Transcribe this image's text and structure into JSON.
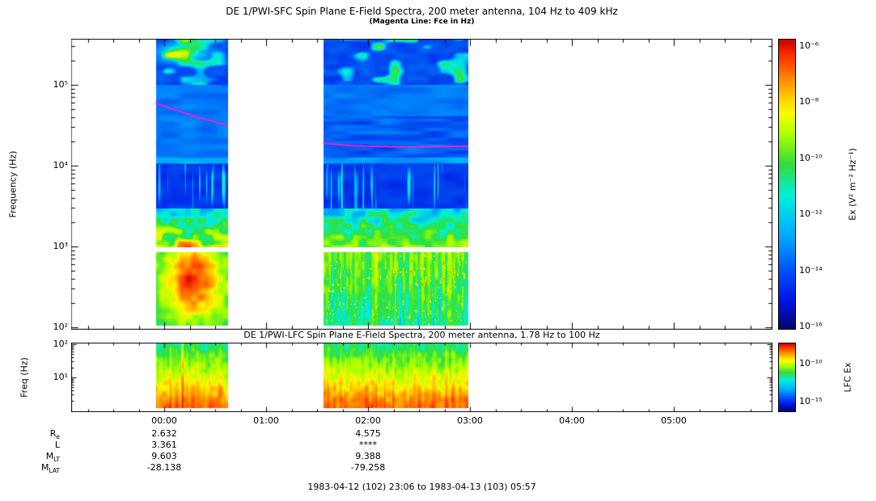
{
  "sfc": {
    "title": "DE 1/PWI-SFC  Spin Plane E-Field Spectra, 200 meter antenna, 104 Hz to 409 kHz",
    "subtitle": "(Magenta Line: Fce in Hz)",
    "ylabel": "Frequency (Hz)",
    "yticks": [
      "10⁵",
      "10⁴",
      "10³",
      "10²"
    ],
    "colorbar_label": "Ex (V² m⁻² Hz⁻¹)",
    "colorbar_ticks": [
      "10⁻⁶",
      "10⁻⁸",
      "10⁻¹⁰",
      "10⁻¹²",
      "10⁻¹⁴",
      "10⁻¹⁶"
    ]
  },
  "lfc": {
    "title": "DE 1/PWI-LFC  Spin Plane E-Field Spectra, 200 meter antenna, 1.78 Hz to 100 Hz",
    "ylabel": "Freq (Hz)",
    "yticks": [
      "10²",
      "10¹"
    ],
    "colorbar_label": "LFC Ex",
    "colorbar_ticks": [
      "10⁻¹⁰",
      "10⁻¹⁵"
    ]
  },
  "time_axis": {
    "ticks": [
      "00:00",
      "01:00",
      "02:00",
      "03:00",
      "04:00",
      "05:00"
    ]
  },
  "ephemeris": {
    "rows": [
      {
        "label": "R",
        "sub": "e",
        "col1": "2.632",
        "col2": "4.575"
      },
      {
        "label": "L",
        "sub": "",
        "col1": "3.361",
        "col2": "****"
      },
      {
        "label": "M",
        "sub": "LT",
        "col1": "9.603",
        "col2": "9.388"
      },
      {
        "label": "M",
        "sub": "LAT",
        "col1": "-28.138",
        "col2": "-79.258"
      }
    ]
  },
  "footer": "1983-04-12 (102) 23:06 to 1983-04-13 (103) 05:57",
  "chart_data": [
    {
      "type": "heatmap",
      "instrument": "DE 1/PWI-SFC",
      "title": "DE 1/PWI-SFC  Spin Plane E-Field Spectra, 200 meter antenna, 104 Hz to 409 kHz",
      "note": "(Magenta Line: Fce in Hz)",
      "xticks": [
        "00:00",
        "01:00",
        "02:00",
        "03:00",
        "04:00",
        "05:00"
      ],
      "x_range_hours": [
        -0.91,
        5.97
      ],
      "ylabel": "Frequency (Hz)",
      "y_scale": "log",
      "y_range_hz": [
        104,
        409000
      ],
      "y_decade_ticks_hz": [
        100,
        1000,
        10000,
        100000
      ],
      "colorbar_label": "Ex (V² m⁻² Hz⁻¹)",
      "colorbar_ticks": [
        "10⁻⁶",
        "10⁻⁸",
        "10⁻¹⁰",
        "10⁻¹²",
        "10⁻¹⁴",
        "10⁻¹⁶"
      ],
      "z_log10_range": [
        -16,
        -6
      ],
      "data_segments_hours": [
        [
          -0.08,
          0.62
        ],
        [
          1.56,
          2.98
        ]
      ],
      "gap_band_hz": [
        950,
        1150
      ],
      "fce_line_khz": {
        "color": "#ff1ec8",
        "segments": [
          [
            [
              -0.08,
              59
            ],
            [
              0.15,
              47
            ],
            [
              0.35,
              39
            ],
            [
              0.62,
              31.5
            ]
          ],
          [
            [
              1.56,
              19.0
            ],
            [
              1.85,
              17.6
            ],
            [
              2.35,
              17.0
            ],
            [
              2.98,
              17.4
            ]
          ]
        ]
      },
      "intensity_features": [
        "broadband emission below 1 kHz, strongest (yellow-orange) in first segment near 00:15",
        "patchy cyan hiss above 100 kHz at the top of both segments",
        "impulsive vertical streaks between 1 and 10 kHz in the second segment",
        "background dark blue near 10^-16, low-frequency band reaching 10^-8 to 10^-7"
      ]
    },
    {
      "type": "heatmap",
      "instrument": "DE 1/PWI-LFC",
      "title": "DE 1/PWI-LFC  Spin Plane E-Field Spectra, 200 meter antenna, 1.78 Hz to 100 Hz",
      "xticks": [
        "00:00",
        "01:00",
        "02:00",
        "03:00",
        "04:00",
        "05:00"
      ],
      "x_range_hours": [
        -0.91,
        5.97
      ],
      "ylabel": "Freq (Hz)",
      "y_scale": "log",
      "y_range_hz": [
        1.78,
        100
      ],
      "colorbar_label": "LFC Ex",
      "colorbar_ticks": [
        "10⁻¹⁰",
        "10⁻¹⁵"
      ],
      "data_segments_hours": [
        [
          -0.08,
          0.62
        ],
        [
          1.56,
          2.98
        ]
      ],
      "intensity_features": [
        "intensity increases toward the lowest frequencies: green at 30-100 Hz, yellow mid-band, orange-red below ~5 Hz",
        "vertical striations across both data segments"
      ]
    }
  ]
}
